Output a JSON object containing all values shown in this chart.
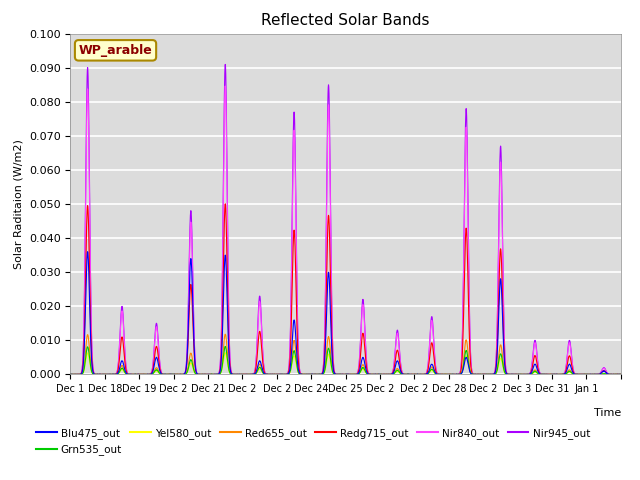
{
  "title": "Reflected Solar Bands",
  "ylabel": "Solar Raditaion (W/m2)",
  "xlabel": "Time",
  "annotation": "WP_arable",
  "ylim": [
    0,
    0.1
  ],
  "yticks": [
    0.0,
    0.01,
    0.02,
    0.03,
    0.04,
    0.05,
    0.06,
    0.07,
    0.08,
    0.09,
    0.1
  ],
  "band_colors": {
    "Blu475_out": "#0000ff",
    "Grn535_out": "#00cc00",
    "Yel580_out": "#ffff00",
    "Red655_out": "#ff8800",
    "Redg715_out": "#ff0000",
    "Nir840_out": "#ff44ff",
    "Nir945_out": "#aa00ff"
  },
  "background_color": "#dcdcdc",
  "fig_background": "#ffffff",
  "grid_color": "#ffffff",
  "xtick_labels": [
    "Dec 1",
    "Dec 18",
    "Dec 19",
    "Dec 2",
    "Dec 21",
    "Dec 2",
    "Dec 2",
    "Dec 24",
    "Dec 25",
    "Dec 2",
    "Dec 2",
    "Dec 28",
    "Dec 2",
    "Dec 3",
    "Dec 31",
    "Jan 1"
  ],
  "nir945_peaks": [
    0.09,
    0.02,
    0.015,
    0.048,
    0.091,
    0.023,
    0.077,
    0.085,
    0.022,
    0.013,
    0.017,
    0.078,
    0.067,
    0.01,
    0.01,
    0.002
  ],
  "blu475_peaks": [
    0.036,
    0.004,
    0.005,
    0.034,
    0.035,
    0.004,
    0.016,
    0.03,
    0.005,
    0.004,
    0.003,
    0.005,
    0.028,
    0.003,
    0.003,
    0.001
  ],
  "band_scales": {
    "Blu475_out": 0.4,
    "Grn535_out": 0.09,
    "Yel580_out": 0.07,
    "Red655_out": 0.13,
    "Redg715_out": 0.55,
    "Nir840_out": 0.93,
    "Nir945_out": 1.0
  },
  "n_days": 16,
  "pts_per_day": 144,
  "legend_order": [
    "Blu475_out",
    "Grn535_out",
    "Yel580_out",
    "Red655_out",
    "Redg715_out",
    "Nir840_out",
    "Nir945_out"
  ]
}
